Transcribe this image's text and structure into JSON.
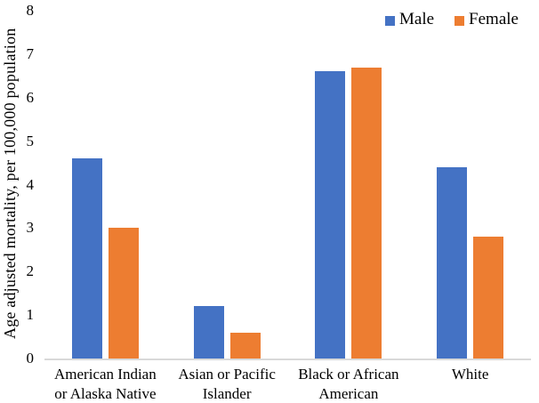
{
  "chart_data": {
    "type": "bar",
    "title": "",
    "xlabel": "",
    "ylabel": "Age adjusted mortality, per 100,000 population",
    "categories": [
      "American Indian or Alaska Native",
      "Asian or Pacific Islander",
      "Black or African American",
      "White"
    ],
    "series": [
      {
        "name": "Male",
        "color": "#4472C4",
        "values": [
          4.6,
          1.2,
          6.6,
          4.4
        ]
      },
      {
        "name": "Female",
        "color": "#ED7D31",
        "values": [
          3.0,
          0.6,
          6.7,
          2.8
        ]
      }
    ],
    "ylim": [
      0,
      8
    ],
    "yticks": [
      0,
      1,
      2,
      3,
      4,
      5,
      6,
      7,
      8
    ],
    "grid": false,
    "legend_position": "top-right",
    "axis_line_color": "#d9d9d9"
  }
}
